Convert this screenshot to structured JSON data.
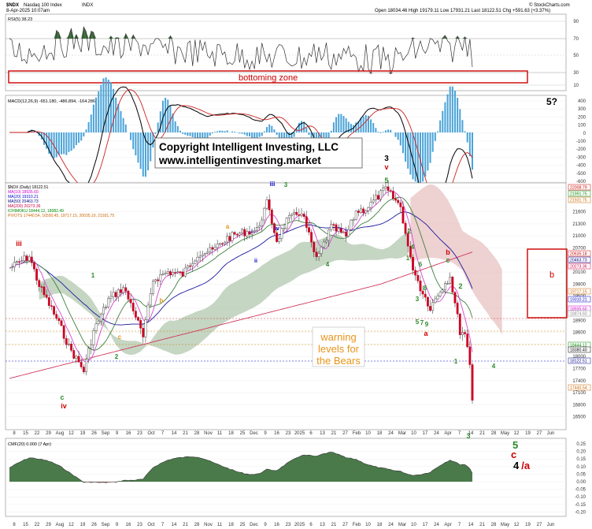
{
  "header": {
    "symbol": "$NDX",
    "name": "Nasdaq 100 Index",
    "exchange": "INDX",
    "date": "8-Apr-2025 10:07am",
    "ohlc": "Open 18034.46  High 19179.11  Low 17931.21  Last 18122.51  Chg +591.63 (+3.37%)",
    "brand": "© StockCharts.com"
  },
  "panels": {
    "rsi_label": "RSI(5) 38.23",
    "rsi_value": "38.23",
    "rsi_levels": [
      "90",
      "70",
      "50",
      "30",
      "10"
    ],
    "macd_label": "MACD(12,26,9) -651.180, -486.894, -164.286",
    "macd_values": [
      "-651.180",
      "-486.894",
      "-164.286"
    ],
    "macd_ticks": [
      "400",
      "300",
      "200",
      "100",
      "0",
      "-100",
      "-200",
      "-300",
      "-400",
      "-500",
      "-600"
    ],
    "price_legend": [
      {
        "text": "$NDX (Daily) 18122.51",
        "color": "#000000"
      },
      {
        "text": "MA(10) 18935.60",
        "color": "#cc00cc"
      },
      {
        "text": "MA(20) 19310.21",
        "color": "#0000cc"
      },
      {
        "text": "MA(50) 20463.73",
        "color": "#000088"
      },
      {
        "text": "MA(200) 20273.36",
        "color": "#cc0044"
      },
      {
        "text": "ICHIMOKU 18444.12, 18082.49",
        "color": "#008800"
      },
      {
        "text": "PIVOTS 17440.54, 16550.45, 19717.15, 20035.10, 21931.75",
        "color": "#cc6600"
      }
    ],
    "price_ticks": [
      "22200",
      "21900",
      "21600",
      "21300",
      "21000",
      "20700",
      "20400",
      "20100",
      "19800",
      "19500",
      "19200",
      "18900",
      "18600",
      "18300",
      "18000",
      "17700",
      "17400",
      "17100",
      "16800",
      "16500"
    ],
    "right_tags": [
      {
        "text": "22008.79",
        "color": "#cc0000"
      },
      {
        "text": "21991.75",
        "color": "#008800"
      },
      {
        "text": "21931.75",
        "color": "#cc6600"
      },
      {
        "text": "20635.18",
        "color": "#cc0000"
      },
      {
        "text": "20463.73",
        "color": "#000088"
      },
      {
        "text": "20273.36",
        "color": "#cc0044"
      },
      {
        "text": "19717.15",
        "color": "#cc6600"
      },
      {
        "text": "19310.21",
        "color": "#0000cc"
      },
      {
        "text": "18935.60",
        "color": "#cc00cc"
      },
      {
        "text": "18874.60",
        "color": "#888888"
      },
      {
        "text": "18444.12",
        "color": "#008800"
      },
      {
        "text": "18380.40",
        "color": "#000000"
      },
      {
        "text": "18122.51",
        "color": "#000088"
      },
      {
        "text": "17440.54",
        "color": "#cc6600"
      }
    ],
    "cmf_label": "CMF(20) 0.000 (7 Apr)",
    "cmf_value": "0.000",
    "cmf_ticks": [
      "0.25",
      "0.20",
      "0.15",
      "0.10",
      "0.05",
      "0.00",
      "-0.05",
      "-0.10",
      "-0.15",
      "-0.20"
    ]
  },
  "annotations": {
    "bottoming_zone": "bottoming zone",
    "copyright_line1": "Copyright Intelligent Investing, LLC",
    "copyright_line2": "www.intelligentinvesting.market",
    "warning": "warning levels for the Bears",
    "five_question": "5?",
    "three_black": "3",
    "v_red": "v",
    "five_green_top": "5",
    "iii_red": "iii",
    "iv_red": "iv",
    "c_green": "c",
    "b_box": "b",
    "legend_5": "5",
    "legend_c": "c",
    "legend_4a": "4 /a",
    "legend_4a_black": "4",
    "legend_4a_red": "/a"
  },
  "x_axis_labels": [
    "8",
    "15",
    "22",
    "29",
    "Aug",
    "12",
    "19",
    "26",
    "Sep",
    "9",
    "16",
    "23",
    "Oct",
    "7",
    "14",
    "21",
    "28",
    "Nov",
    "11",
    "18",
    "25",
    "Dec",
    "9",
    "16",
    "23",
    "2025",
    "6",
    "13",
    "21",
    "27",
    "Feb",
    "10",
    "18",
    "24",
    "Mar",
    "10",
    "17",
    "24",
    "Apr",
    "7",
    "14",
    "21",
    "28",
    "May",
    "12",
    "19",
    "27",
    "Jun"
  ],
  "colors": {
    "cloud_green": "#4a7a4a",
    "cloud_red": "#8a4a4a",
    "macd_hist": "#4aa3d8",
    "warning": "#e8941a",
    "box_red": "#cc0000"
  },
  "chart_data": {
    "type": "line",
    "title": "Nasdaq 100 Index",
    "symbol": "$NDX",
    "series": [
      {
        "name": "$NDX (Daily)",
        "last": 18122.51
      },
      {
        "name": "MA(10)",
        "last": 18935.6
      },
      {
        "name": "MA(20)",
        "last": 19310.21
      },
      {
        "name": "MA(50)",
        "last": 20463.73
      },
      {
        "name": "MA(200)",
        "last": 20273.36
      }
    ],
    "rsi_last": 38.23,
    "macd_last": [
      -651.18,
      -486.894,
      -164.286
    ],
    "cmf_last": 0.0,
    "ylim": [
      16500,
      22300
    ]
  }
}
